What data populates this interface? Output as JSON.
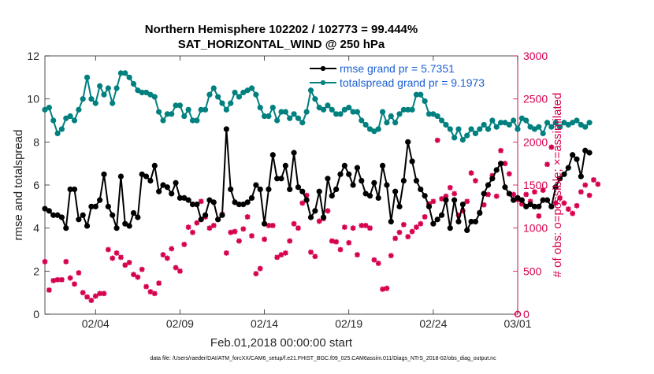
{
  "chart_data": {
    "type": "line",
    "title": "Northern Hemisphere 102202 / 102773 = 99.444%",
    "subtitle": "SAT_HORIZONTAL_WIND @ 250 hPa",
    "xlabel": "Feb.01,2018 00:00:00 start",
    "ylabel": "rmse and totalspread",
    "y2label": "# of obs: o=possible; ×=assimilated",
    "footer": "data file: /Users/raeder/DAI/ATM_forcXX/CAM6_setup/f.e21.FHIST_BGC.f09_025.CAM6assim.011/Diags_NTrS_2018-02/obs_diag_output.nc",
    "xlim": [
      1,
      29
    ],
    "ylim": [
      0,
      12
    ],
    "y2lim": [
      0,
      3000
    ],
    "grid": false,
    "legend_position": "top-right",
    "x_ticks": [
      {
        "label": "02/04",
        "day": 4
      },
      {
        "label": "02/09",
        "day": 9
      },
      {
        "label": "02/14",
        "day": 14
      },
      {
        "label": "02/19",
        "day": 19
      },
      {
        "label": "02/24",
        "day": 24
      },
      {
        "label": "03/01",
        "day": 29
      }
    ],
    "y_ticks": [
      "0",
      "2",
      "4",
      "6",
      "8",
      "10",
      "12"
    ],
    "y2_ticks": [
      "0",
      "500",
      "1000",
      "1500",
      "2000",
      "2500",
      "3000"
    ],
    "x_start": 1.0,
    "x_step": 0.25,
    "series": [
      {
        "name": "rmse grand pr = 5.7351",
        "color": "#000000",
        "axis": "left",
        "values": [
          4.9,
          4.8,
          4.6,
          4.6,
          4.5,
          4.0,
          5.8,
          5.8,
          4.4,
          4.6,
          4.1,
          5.0,
          5.0,
          5.3,
          6.5,
          5.0,
          4.6,
          4.0,
          6.4,
          4.2,
          4.1,
          4.7,
          4.5,
          6.5,
          6.4,
          6.2,
          6.9,
          5.7,
          6.0,
          5.9,
          5.6,
          6.1,
          5.4,
          5.4,
          5.3,
          5.1,
          5.1,
          4.4,
          4.6,
          5.3,
          5.2,
          4.4,
          4.6,
          8.6,
          5.8,
          5.2,
          5.1,
          5.1,
          5.2,
          5.4,
          6.0,
          5.8,
          4.2,
          5.8,
          7.4,
          6.3,
          6.3,
          6.9,
          5.8,
          7.5,
          5.9,
          5.7,
          5.3,
          4.5,
          4.8,
          5.7,
          4.5,
          6.3,
          5.5,
          5.8,
          6.5,
          6.9,
          6.5,
          6.0,
          6.8,
          6.2,
          5.6,
          5.5,
          6.1,
          5.4,
          6.9,
          6.0,
          4.3,
          5.7,
          5.0,
          6.2,
          8.0,
          7.1,
          6.2,
          5.8,
          5.5,
          5.0,
          4.2,
          4.4,
          4.6,
          5.3,
          4.0,
          5.3,
          4.3,
          5.1,
          3.9,
          4.3,
          4.3,
          4.7,
          5.6,
          6.0,
          6.3,
          6.7,
          7.0,
          5.9,
          5.6,
          5.3,
          5.4,
          5.3,
          5.0,
          5.1,
          5.0,
          5.0,
          5.3,
          5.3,
          5.0,
          5.9,
          6.3,
          6.5,
          6.8,
          7.4,
          7.2,
          6.4,
          7.6,
          7.5
        ]
      },
      {
        "name": "totalspread grand pr = 9.1973",
        "color": "#00807f",
        "axis": "left",
        "values": [
          9.5,
          9.6,
          9.0,
          8.4,
          8.6,
          9.1,
          9.2,
          9.0,
          9.5,
          10.0,
          11.0,
          10.0,
          9.8,
          10.6,
          10.2,
          10.5,
          9.8,
          10.5,
          11.2,
          11.2,
          11.0,
          10.7,
          10.4,
          10.3,
          10.3,
          10.2,
          10.1,
          9.4,
          9.0,
          9.3,
          9.3,
          9.7,
          9.7,
          9.2,
          9.5,
          9.0,
          9.0,
          9.5,
          9.5,
          10.2,
          10.5,
          10.1,
          9.8,
          9.5,
          9.8,
          10.3,
          10.1,
          10.3,
          10.4,
          10.5,
          10.2,
          9.6,
          9.2,
          9.2,
          9.6,
          9.0,
          9.4,
          9.4,
          9.1,
          9.3,
          9.1,
          8.9,
          9.4,
          10.4,
          10.0,
          9.6,
          9.5,
          9.7,
          9.5,
          9.3,
          9.3,
          9.5,
          9.6,
          9.4,
          9.4,
          9.0,
          8.8,
          8.6,
          8.5,
          8.6,
          9.4,
          8.9,
          9.2,
          8.9,
          9.3,
          9.5,
          9.5,
          9.5,
          10.2,
          10.2,
          9.9,
          9.3,
          9.3,
          9.2,
          9.0,
          8.8,
          8.6,
          8.2,
          8.6,
          8.1,
          8.3,
          8.6,
          8.4,
          8.6,
          8.8,
          8.6,
          9.0,
          8.7,
          8.9,
          8.9,
          8.8,
          9.0,
          8.6,
          9.1,
          9.0,
          8.7,
          8.6,
          8.7,
          8.4,
          8.9,
          8.7,
          8.9,
          8.7,
          8.9,
          8.8,
          8.9,
          9.0,
          8.8,
          8.7,
          8.9
        ]
      },
      {
        "name": "obs assimilated",
        "color": "#d6004f",
        "axis": "right",
        "values": [
          610,
          280,
          390,
          400,
          400,
          610,
          420,
          350,
          480,
          250,
          200,
          160,
          210,
          240,
          240,
          750,
          650,
          710,
          660,
          570,
          600,
          460,
          430,
          520,
          320,
          260,
          240,
          360,
          690,
          650,
          760,
          540,
          500,
          810,
          1010,
          950,
          1060,
          1310,
          1130,
          1000,
          1030,
          1100,
          1160,
          710,
          950,
          960,
          850,
          990,
          1130,
          910,
          470,
          530,
          870,
          1030,
          1030,
          660,
          690,
          710,
          850,
          1050,
          1000,
          1290,
          1380,
          720,
          670,
          1080,
          1110,
          1200,
          850,
          840,
          750,
          1010,
          830,
          1000,
          690,
          1030,
          1030,
          1000,
          630,
          590,
          290,
          300,
          680,
          880,
          950,
          1040,
          900,
          960,
          1010,
          1050,
          1130,
          1280,
          1310,
          2020,
          1340,
          1370,
          1470,
          1400,
          1150,
          1200,
          1310,
          1640,
          1550,
          1180,
          1270,
          1390,
          1610,
          1370,
          1900,
          1750,
          1630,
          1390,
          1330,
          1280,
          1390,
          1310,
          1420,
          1140,
          1440,
          1740,
          1940,
          1290,
          1350,
          1290,
          1220,
          1170,
          1260,
          1420,
          1500,
          1380,
          1560,
          1510
        ]
      }
    ],
    "possible_endpoint": {
      "day": 29,
      "value": 0
    }
  }
}
